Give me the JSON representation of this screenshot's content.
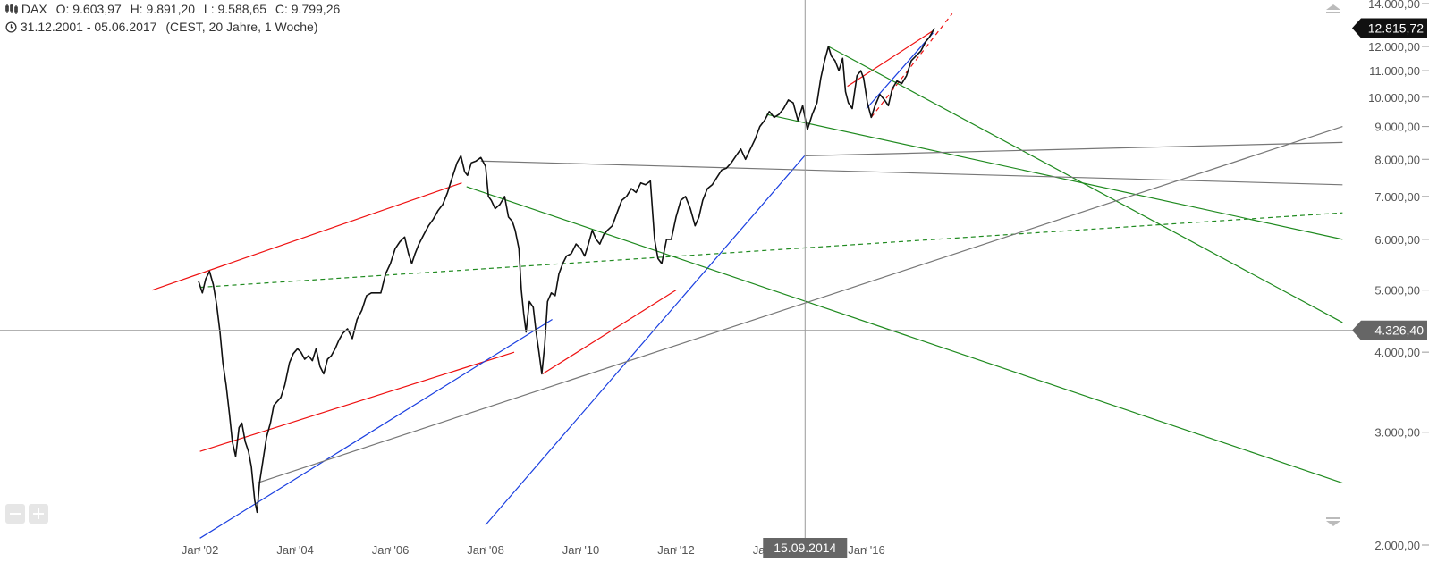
{
  "header": {
    "symbol": "DAX",
    "open": "O: 9.603,97",
    "high": "H: 9.891,20",
    "low": "L: 9.588,65",
    "close": "C: 9.799,26",
    "range": "31.12.2001 - 05.06.2017",
    "period": "(CEST, 20 Jahre, 1 Woche)",
    "symbol_icon": "candles-icon",
    "clock_icon": "clock-icon"
  },
  "colors": {
    "price": "#111111",
    "red": "#ee1111",
    "blue": "#1a3fe0",
    "green": "#1f8a1f",
    "gray": "#777777",
    "crosshair": "#999999",
    "current_label_bg": "#111111",
    "cursor_label_bg": "#666666"
  },
  "chart_data": {
    "type": "line",
    "title": "DAX",
    "y_scale": "log",
    "ylim": [
      2000,
      14000
    ],
    "y_ticks": [
      2000,
      3000,
      4000,
      5000,
      6000,
      7000,
      8000,
      9000,
      10000,
      11000,
      12000,
      14000
    ],
    "y_tick_labels": [
      "2.000,00",
      "3.000,00",
      "4.000,00",
      "5.000,00",
      "6.000,00",
      "7.000,00",
      "8.000,00",
      "9.000,00",
      "10.000,00",
      "11.000,00",
      "12.000,00",
      "14.000,00"
    ],
    "x_ticks": [
      2002,
      2004,
      2006,
      2008,
      2010,
      2012,
      2014,
      2016
    ],
    "x_tick_labels": [
      "Jan '02",
      "Jan '04",
      "Jan '06",
      "Jan '08",
      "Jan '10",
      "Jan '12",
      "Jan '14",
      "Jan '16"
    ],
    "xlim": [
      1997.8,
      2026.2
    ],
    "current_price": 12815.72,
    "current_price_label": "12.815,72",
    "cursor_price": 4326.4,
    "cursor_price_label": "4.326,40",
    "cursor_date": 2014.71,
    "cursor_date_label": "15.09.2014",
    "series": [
      {
        "values": [
          [
            2001.97,
            5160
          ],
          [
            2002.05,
            4950
          ],
          [
            2002.12,
            5200
          ],
          [
            2002.2,
            5350
          ],
          [
            2002.28,
            5100
          ],
          [
            2002.35,
            4750
          ],
          [
            2002.42,
            4300
          ],
          [
            2002.48,
            3850
          ],
          [
            2002.55,
            3550
          ],
          [
            2002.62,
            3200
          ],
          [
            2002.68,
            2900
          ],
          [
            2002.75,
            2750
          ],
          [
            2002.82,
            3050
          ],
          [
            2002.88,
            3100
          ],
          [
            2002.95,
            2900
          ],
          [
            2003.02,
            2800
          ],
          [
            2003.08,
            2650
          ],
          [
            2003.15,
            2350
          ],
          [
            2003.2,
            2250
          ],
          [
            2003.25,
            2500
          ],
          [
            2003.32,
            2700
          ],
          [
            2003.4,
            2950
          ],
          [
            2003.48,
            3100
          ],
          [
            2003.55,
            3300
          ],
          [
            2003.62,
            3350
          ],
          [
            2003.7,
            3400
          ],
          [
            2003.78,
            3550
          ],
          [
            2003.88,
            3850
          ],
          [
            2003.96,
            3980
          ],
          [
            2004.05,
            4050
          ],
          [
            2004.12,
            4000
          ],
          [
            2004.2,
            3900
          ],
          [
            2004.28,
            3950
          ],
          [
            2004.36,
            3880
          ],
          [
            2004.44,
            4050
          ],
          [
            2004.52,
            3800
          ],
          [
            2004.6,
            3700
          ],
          [
            2004.68,
            3900
          ],
          [
            2004.76,
            3950
          ],
          [
            2004.84,
            4050
          ],
          [
            2004.92,
            4180
          ],
          [
            2005.0,
            4280
          ],
          [
            2005.1,
            4350
          ],
          [
            2005.2,
            4200
          ],
          [
            2005.3,
            4500
          ],
          [
            2005.4,
            4650
          ],
          [
            2005.5,
            4900
          ],
          [
            2005.6,
            4950
          ],
          [
            2005.7,
            4950
          ],
          [
            2005.8,
            4950
          ],
          [
            2005.9,
            5300
          ],
          [
            2006.0,
            5500
          ],
          [
            2006.1,
            5800
          ],
          [
            2006.2,
            5950
          ],
          [
            2006.3,
            6050
          ],
          [
            2006.38,
            5700
          ],
          [
            2006.45,
            5500
          ],
          [
            2006.52,
            5700
          ],
          [
            2006.6,
            5900
          ],
          [
            2006.7,
            6100
          ],
          [
            2006.8,
            6300
          ],
          [
            2006.9,
            6450
          ],
          [
            2007.0,
            6650
          ],
          [
            2007.1,
            6800
          ],
          [
            2007.2,
            7100
          ],
          [
            2007.3,
            7500
          ],
          [
            2007.4,
            7900
          ],
          [
            2007.48,
            8100
          ],
          [
            2007.56,
            7650
          ],
          [
            2007.62,
            7550
          ],
          [
            2007.7,
            7900
          ],
          [
            2007.8,
            7950
          ],
          [
            2007.9,
            8050
          ],
          [
            2008.0,
            7800
          ],
          [
            2008.06,
            7000
          ],
          [
            2008.12,
            6900
          ],
          [
            2008.2,
            6700
          ],
          [
            2008.3,
            6800
          ],
          [
            2008.4,
            7000
          ],
          [
            2008.48,
            6500
          ],
          [
            2008.56,
            6400
          ],
          [
            2008.62,
            6200
          ],
          [
            2008.7,
            5800
          ],
          [
            2008.75,
            5000
          ],
          [
            2008.8,
            4600
          ],
          [
            2008.85,
            4300
          ],
          [
            2008.92,
            4800
          ],
          [
            2009.0,
            4700
          ],
          [
            2009.06,
            4300
          ],
          [
            2009.12,
            4000
          ],
          [
            2009.18,
            3700
          ],
          [
            2009.24,
            4100
          ],
          [
            2009.3,
            4800
          ],
          [
            2009.38,
            4950
          ],
          [
            2009.46,
            4900
          ],
          [
            2009.54,
            5300
          ],
          [
            2009.62,
            5500
          ],
          [
            2009.7,
            5650
          ],
          [
            2009.8,
            5700
          ],
          [
            2009.9,
            5900
          ],
          [
            2010.0,
            5800
          ],
          [
            2010.08,
            5650
          ],
          [
            2010.16,
            5900
          ],
          [
            2010.24,
            6200
          ],
          [
            2010.32,
            6000
          ],
          [
            2010.4,
            5900
          ],
          [
            2010.48,
            6100
          ],
          [
            2010.56,
            6200
          ],
          [
            2010.66,
            6300
          ],
          [
            2010.76,
            6600
          ],
          [
            2010.86,
            6900
          ],
          [
            2010.96,
            7000
          ],
          [
            2011.06,
            7200
          ],
          [
            2011.16,
            7100
          ],
          [
            2011.26,
            7350
          ],
          [
            2011.36,
            7300
          ],
          [
            2011.46,
            7400
          ],
          [
            2011.55,
            6000
          ],
          [
            2011.62,
            5600
          ],
          [
            2011.7,
            5500
          ],
          [
            2011.8,
            6000
          ],
          [
            2011.9,
            6000
          ],
          [
            2012.0,
            6500
          ],
          [
            2012.1,
            6900
          ],
          [
            2012.2,
            7000
          ],
          [
            2012.3,
            6700
          ],
          [
            2012.4,
            6300
          ],
          [
            2012.48,
            6500
          ],
          [
            2012.56,
            6900
          ],
          [
            2012.66,
            7200
          ],
          [
            2012.76,
            7300
          ],
          [
            2012.86,
            7500
          ],
          [
            2012.96,
            7700
          ],
          [
            2013.06,
            7750
          ],
          [
            2013.16,
            7900
          ],
          [
            2013.26,
            8100
          ],
          [
            2013.36,
            8300
          ],
          [
            2013.46,
            8000
          ],
          [
            2013.56,
            8300
          ],
          [
            2013.66,
            8600
          ],
          [
            2013.76,
            9000
          ],
          [
            2013.86,
            9200
          ],
          [
            2013.96,
            9500
          ],
          [
            2014.06,
            9300
          ],
          [
            2014.16,
            9400
          ],
          [
            2014.26,
            9600
          ],
          [
            2014.36,
            9900
          ],
          [
            2014.46,
            9800
          ],
          [
            2014.56,
            9200
          ],
          [
            2014.66,
            9700
          ],
          [
            2014.76,
            8900
          ],
          [
            2014.86,
            9400
          ],
          [
            2014.96,
            9800
          ],
          [
            2015.04,
            10700
          ],
          [
            2015.12,
            11400
          ],
          [
            2015.2,
            12000
          ],
          [
            2015.26,
            11600
          ],
          [
            2015.34,
            11400
          ],
          [
            2015.42,
            11000
          ],
          [
            2015.5,
            11500
          ],
          [
            2015.56,
            10200
          ],
          [
            2015.62,
            9800
          ],
          [
            2015.7,
            9600
          ],
          [
            2015.8,
            10800
          ],
          [
            2015.88,
            11000
          ],
          [
            2015.94,
            10700
          ],
          [
            2016.02,
            9800
          ],
          [
            2016.1,
            9300
          ],
          [
            2016.18,
            9700
          ],
          [
            2016.28,
            10100
          ],
          [
            2016.38,
            9900
          ],
          [
            2016.46,
            9700
          ],
          [
            2016.54,
            10300
          ],
          [
            2016.64,
            10600
          ],
          [
            2016.74,
            10500
          ],
          [
            2016.84,
            10800
          ],
          [
            2016.94,
            11400
          ],
          [
            2017.04,
            11600
          ],
          [
            2017.14,
            11800
          ],
          [
            2017.24,
            12200
          ],
          [
            2017.32,
            12400
          ],
          [
            2017.4,
            12700
          ],
          [
            2017.43,
            12816
          ]
        ]
      }
    ],
    "trendlines": [
      {
        "color": "red",
        "style": "solid",
        "p1": [
          2002.0,
          2800
        ],
        "p2": [
          2008.6,
          4000
        ]
      },
      {
        "color": "red",
        "style": "solid",
        "p1": [
          2001.0,
          5000
        ],
        "p2": [
          2007.5,
          7350
        ]
      },
      {
        "color": "red",
        "style": "solid",
        "p1": [
          2009.2,
          3700
        ],
        "p2": [
          2012.0,
          5000
        ]
      },
      {
        "color": "red",
        "style": "solid",
        "p1": [
          2015.6,
          10400
        ],
        "p2": [
          2017.4,
          12700
        ]
      },
      {
        "color": "red",
        "style": "dashed",
        "p1": [
          2016.1,
          9300
        ],
        "p2": [
          2017.8,
          13500
        ]
      },
      {
        "color": "blue",
        "style": "solid",
        "p1": [
          2002.0,
          2050
        ],
        "p2": [
          2009.4,
          4500
        ]
      },
      {
        "color": "blue",
        "style": "solid",
        "p1": [
          2008.0,
          2150
        ],
        "p2": [
          2014.7,
          8100
        ]
      },
      {
        "color": "blue",
        "style": "solid",
        "p1": [
          2016.0,
          9600
        ],
        "p2": [
          2017.4,
          12600
        ]
      },
      {
        "color": "green",
        "style": "solid",
        "p1": [
          2007.6,
          7250
        ],
        "p2": [
          2026.0,
          2500
        ]
      },
      {
        "color": "green",
        "style": "solid",
        "p1": [
          2013.9,
          9400
        ],
        "p2": [
          2026.0,
          6000
        ]
      },
      {
        "color": "green",
        "style": "solid",
        "p1": [
          2015.2,
          12000
        ],
        "p2": [
          2026.0,
          4450
        ]
      },
      {
        "color": "green",
        "style": "dashed",
        "p1": [
          2002.0,
          5050
        ],
        "p2": [
          2026.0,
          6600
        ]
      },
      {
        "color": "gray",
        "style": "solid",
        "p1": [
          2003.2,
          2500
        ],
        "p2": [
          2026.0,
          9000
        ]
      },
      {
        "color": "gray",
        "style": "solid",
        "p1": [
          2007.9,
          7950
        ],
        "p2": [
          2026.0,
          7300
        ]
      },
      {
        "color": "gray",
        "style": "solid",
        "p1": [
          2014.7,
          8100
        ],
        "p2": [
          2026.0,
          8500
        ]
      }
    ]
  }
}
